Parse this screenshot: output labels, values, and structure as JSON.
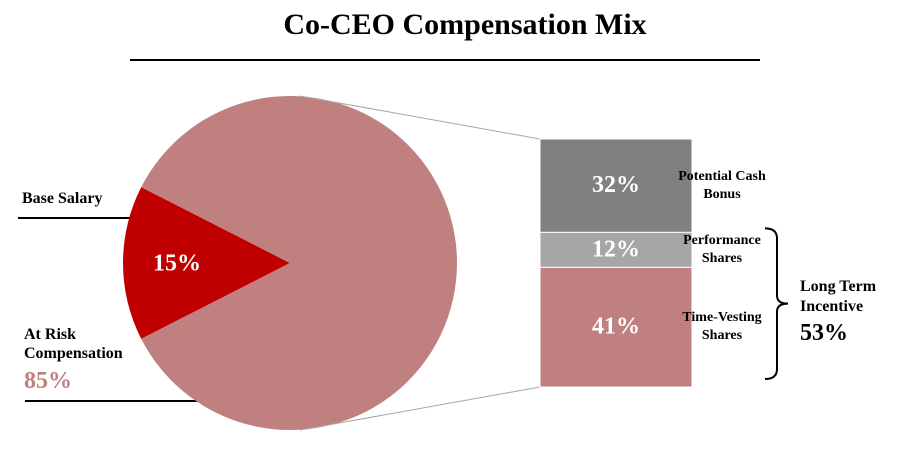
{
  "chart_data": {
    "type": "bar-of-pie",
    "title": "Co-CEO Compensation Mix",
    "pie": {
      "categories": [
        "Base Salary",
        "At Risk Compensation"
      ],
      "values": [
        15,
        85
      ],
      "value_labels": [
        "15%",
        "85%"
      ],
      "colors": [
        "#c00000",
        "#c08080"
      ]
    },
    "bar": {
      "categories": [
        "Potential Cash Bonus",
        "Performance Shares",
        "Time-Vesting Shares"
      ],
      "values": [
        32,
        12,
        41
      ],
      "value_labels": [
        "32%",
        "12%",
        "41%"
      ],
      "colors": [
        "#808080",
        "#a6a6a6",
        "#c08080"
      ]
    },
    "group": {
      "label": "Long Term Incentive",
      "value": 53,
      "value_label": "53%"
    }
  }
}
